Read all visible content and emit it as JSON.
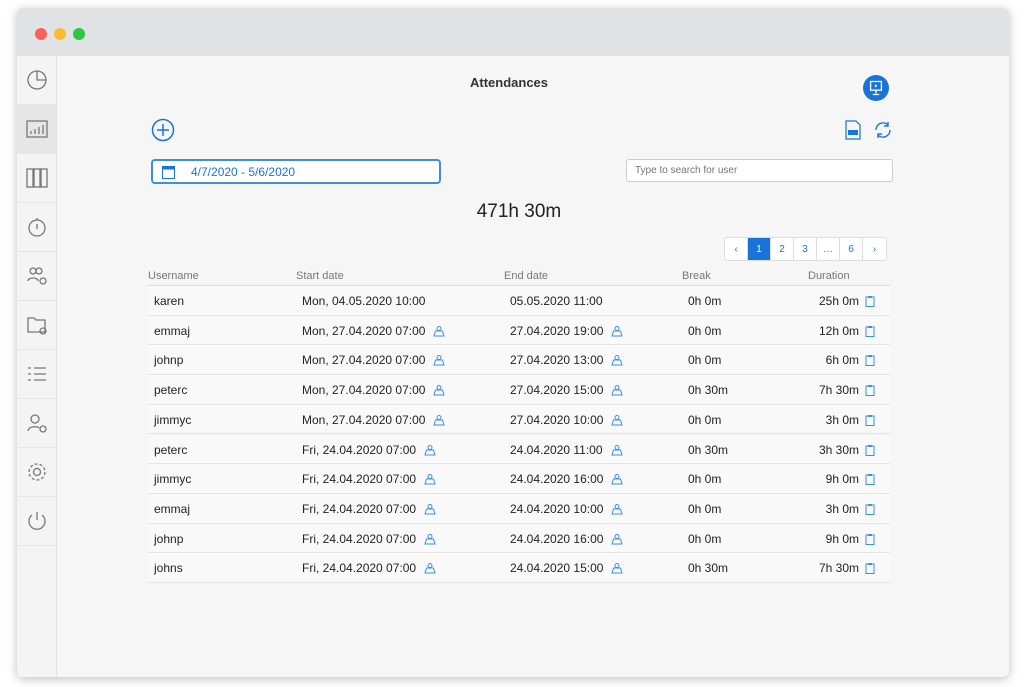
{
  "title": "Attendances",
  "date_range": "4/7/2020 - 5/6/2020",
  "search": {
    "placeholder": "Type to search for user",
    "value": ""
  },
  "total": "471h 30m",
  "pagination": {
    "prev": "‹",
    "pages": [
      "1",
      "2",
      "3",
      "…",
      "6"
    ],
    "next": "›",
    "current": "1"
  },
  "columns": [
    "Username",
    "Start date",
    "End date",
    "Break",
    "Duration"
  ],
  "accent": "#1a73d9",
  "sidebar": [
    "dashboard",
    "reports",
    "archive",
    "timer",
    "groups-settings",
    "projects-settings",
    "list",
    "user-settings",
    "settings",
    "power"
  ],
  "rows": [
    {
      "user": "karen",
      "start": "Mon, 04.05.2020 10:00",
      "end": "05.05.2020 11:00",
      "break": "0h 0m",
      "duration": "25h 0m",
      "loc": false
    },
    {
      "user": "emmaj",
      "start": "Mon, 27.04.2020 07:00",
      "end": "27.04.2020 19:00",
      "break": "0h 0m",
      "duration": "12h 0m",
      "loc": true
    },
    {
      "user": "johnp",
      "start": "Mon, 27.04.2020 07:00",
      "end": "27.04.2020 13:00",
      "break": "0h 0m",
      "duration": "6h 0m",
      "loc": true
    },
    {
      "user": "peterc",
      "start": "Mon, 27.04.2020 07:00",
      "end": "27.04.2020 15:00",
      "break": "0h 30m",
      "duration": "7h 30m",
      "loc": true
    },
    {
      "user": "jimmyc",
      "start": "Mon, 27.04.2020 07:00",
      "end": "27.04.2020 10:00",
      "break": "0h 0m",
      "duration": "3h 0m",
      "loc": true
    },
    {
      "user": "peterc",
      "start": "Fri, 24.04.2020 07:00",
      "end": "24.04.2020 11:00",
      "break": "0h 30m",
      "duration": "3h 30m",
      "loc": true
    },
    {
      "user": "jimmyc",
      "start": "Fri, 24.04.2020 07:00",
      "end": "24.04.2020 16:00",
      "break": "0h 0m",
      "duration": "9h 0m",
      "loc": true
    },
    {
      "user": "emmaj",
      "start": "Fri, 24.04.2020 07:00",
      "end": "24.04.2020 10:00",
      "break": "0h 0m",
      "duration": "3h 0m",
      "loc": true
    },
    {
      "user": "johnp",
      "start": "Fri, 24.04.2020 07:00",
      "end": "24.04.2020 16:00",
      "break": "0h 0m",
      "duration": "9h 0m",
      "loc": true
    },
    {
      "user": "johns",
      "start": "Fri, 24.04.2020 07:00",
      "end": "24.04.2020 15:00",
      "break": "0h 30m",
      "duration": "7h 30m",
      "loc": true
    }
  ]
}
